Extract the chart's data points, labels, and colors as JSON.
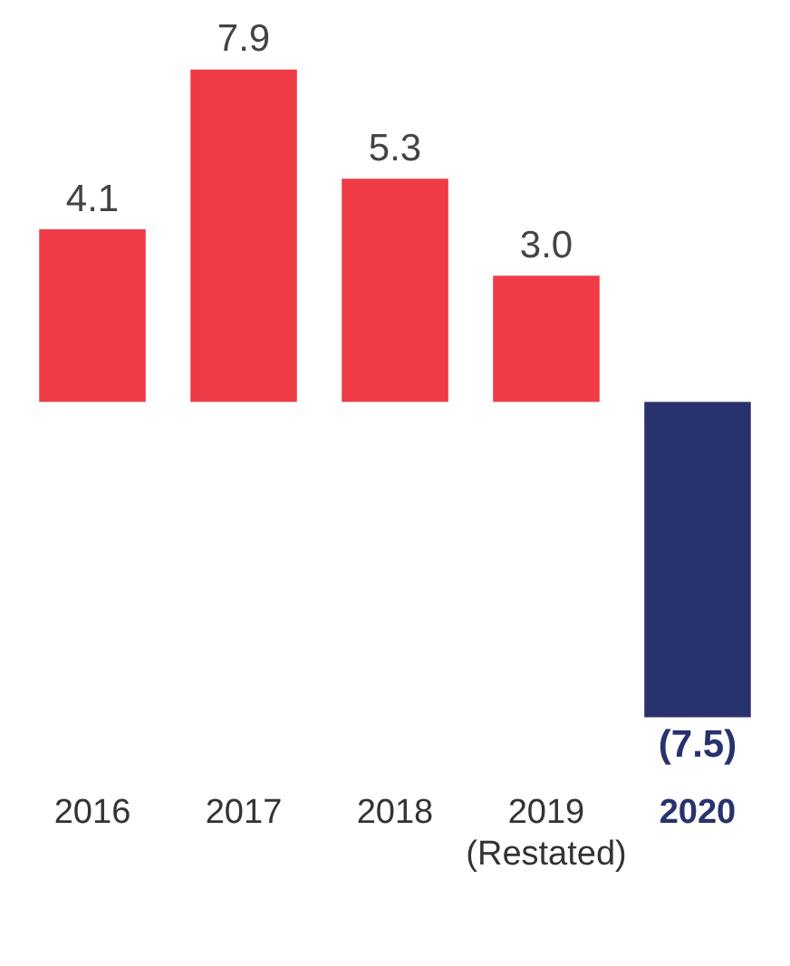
{
  "chart_data": {
    "type": "bar",
    "categories": [
      "2016",
      "2017",
      "2018",
      "2019 (Restated)",
      "2020"
    ],
    "values": [
      4.1,
      7.9,
      5.3,
      3.0,
      -7.5
    ],
    "colors": [
      "#ee3b45",
      "#ee3b45",
      "#ee3b45",
      "#ee3b45",
      "#27326e"
    ],
    "value_labels": [
      "4.1",
      "7.9",
      "5.3",
      "3.0",
      "(7.5)"
    ],
    "grid": false,
    "legend": false
  }
}
